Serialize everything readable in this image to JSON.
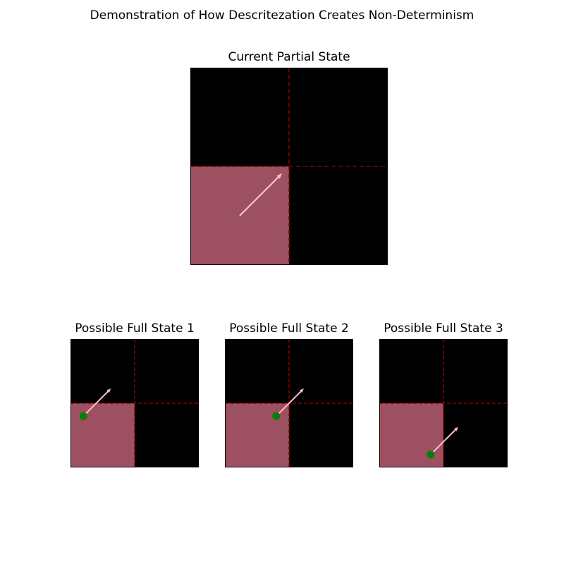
{
  "title": "Demonstration of How Descritezation Creates Non-Determinism",
  "colors": {
    "background": "#000000",
    "highlight_cell": "#9c5062",
    "grid_line": "#8b0000",
    "arrow": "#ffc0cb",
    "point": "#0a7d0a"
  },
  "panels": [
    {
      "title": "Current Partial State",
      "highlight_cell": "bottom-left",
      "arrow": {
        "from": [
          0.5,
          0.5
        ],
        "to": [
          0.93,
          0.93
        ]
      },
      "point": null
    },
    {
      "title": "Possible Full State 1",
      "highlight_cell": "bottom-left",
      "arrow": {
        "from": [
          0.2,
          0.8
        ],
        "to": [
          0.63,
          1.23
        ]
      },
      "point": [
        0.2,
        0.8
      ]
    },
    {
      "title": "Possible Full State 2",
      "highlight_cell": "bottom-left",
      "arrow": {
        "from": [
          0.8,
          0.8
        ],
        "to": [
          1.23,
          1.23
        ]
      },
      "point": [
        0.8,
        0.8
      ]
    },
    {
      "title": "Possible Full State 3",
      "highlight_cell": "bottom-left",
      "arrow": {
        "from": [
          0.8,
          0.2
        ],
        "to": [
          1.23,
          0.63
        ]
      },
      "point": [
        0.8,
        0.2
      ]
    }
  ]
}
